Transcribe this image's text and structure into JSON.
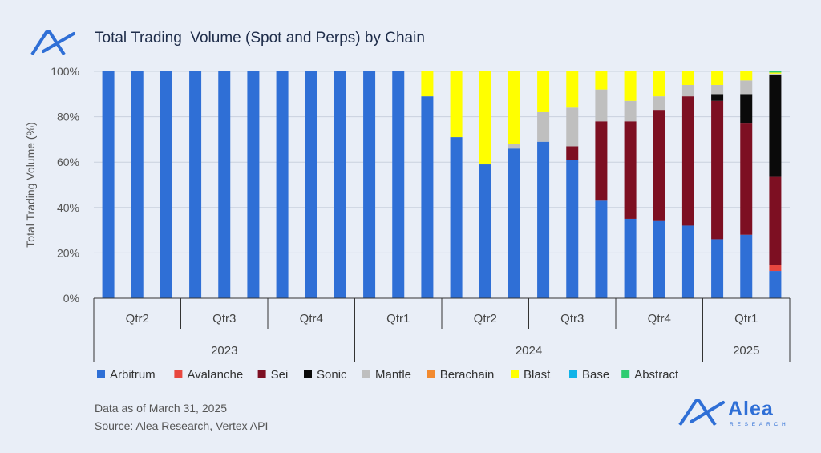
{
  "header": {
    "title": "Total Trading  Volume (Spot and Perps) by Chain",
    "logo_icon": "alea-logo-icon"
  },
  "footer": {
    "line1": "Data as of March 31, 2025",
    "line2": "Source: Alea Research, Vertex API"
  },
  "brand": {
    "name": "Alea",
    "sub": "RESEARCH"
  },
  "chart_data": {
    "type": "bar",
    "stacked": true,
    "ylabel": "Total Trading Volume (%)",
    "ylim": [
      0,
      100
    ],
    "yticks": [
      "0%",
      "20%",
      "40%",
      "60%",
      "80%",
      "100%"
    ],
    "grid": true,
    "legend_position": "bottom",
    "quarters": [
      {
        "label": "Qtr2",
        "bars": 3
      },
      {
        "label": "Qtr3",
        "bars": 3
      },
      {
        "label": "Qtr4",
        "bars": 3
      },
      {
        "label": "Qtr1",
        "bars": 3
      },
      {
        "label": "Qtr2",
        "bars": 3
      },
      {
        "label": "Qtr3",
        "bars": 3
      },
      {
        "label": "Qtr4",
        "bars": 3
      },
      {
        "label": "Qtr1",
        "bars": 3
      }
    ],
    "years": [
      {
        "label": "2023",
        "quarters": 3
      },
      {
        "label": "2024",
        "quarters": 4
      },
      {
        "label": "2025",
        "quarters": 1
      }
    ],
    "series": [
      {
        "name": "Arbitrum",
        "color": "#2f6fd6",
        "values": [
          100,
          100,
          100,
          100,
          100,
          100,
          100,
          100,
          100,
          100,
          100,
          89,
          71,
          59,
          66,
          69,
          61,
          43,
          35,
          34,
          32,
          26,
          28,
          12
        ]
      },
      {
        "name": "Avalanche",
        "color": "#e8473f",
        "values": [
          0,
          0,
          0,
          0,
          0,
          0,
          0,
          0,
          0,
          0,
          0,
          0,
          0,
          0,
          0,
          0,
          0,
          0,
          0,
          0,
          0,
          0,
          0,
          2.5
        ]
      },
      {
        "name": "Sei",
        "color": "#7d0f22",
        "values": [
          0,
          0,
          0,
          0,
          0,
          0,
          0,
          0,
          0,
          0,
          0,
          0,
          0,
          0,
          0,
          0,
          6,
          35,
          43,
          49,
          57,
          61,
          49,
          39
        ]
      },
      {
        "name": "Sonic",
        "color": "#0a0a0a",
        "values": [
          0,
          0,
          0,
          0,
          0,
          0,
          0,
          0,
          0,
          0,
          0,
          0,
          0,
          0,
          0,
          0,
          0,
          0,
          0,
          0,
          0,
          3,
          13,
          45
        ]
      },
      {
        "name": "Mantle",
        "color": "#bfbfbf",
        "values": [
          0,
          0,
          0,
          0,
          0,
          0,
          0,
          0,
          0,
          0,
          0,
          0,
          0,
          0,
          2,
          13,
          17,
          14,
          9,
          6,
          5,
          4,
          6,
          0.5
        ]
      },
      {
        "name": "Berachain",
        "color": "#f28a30",
        "values": [
          0,
          0,
          0,
          0,
          0,
          0,
          0,
          0,
          0,
          0,
          0,
          0,
          0,
          0,
          0,
          0,
          0,
          0,
          0,
          0,
          0,
          0,
          0,
          0
        ]
      },
      {
        "name": "Blast",
        "color": "#ffff00",
        "values": [
          0,
          0,
          0,
          0,
          0,
          0,
          0,
          0,
          0,
          0,
          0,
          11,
          29,
          41,
          32,
          18,
          16,
          8,
          13,
          11,
          6,
          6,
          4,
          0.5
        ]
      },
      {
        "name": "Base",
        "color": "#10b3e8",
        "values": [
          0,
          0,
          0,
          0,
          0,
          0,
          0,
          0,
          0,
          0,
          0,
          0,
          0,
          0,
          0,
          0,
          0,
          0,
          0,
          0,
          0,
          0,
          0,
          0
        ]
      },
      {
        "name": "Abstract",
        "color": "#2ecc71",
        "values": [
          0,
          0,
          0,
          0,
          0,
          0,
          0,
          0,
          0,
          0,
          0,
          0,
          0,
          0,
          0,
          0,
          0,
          0,
          0,
          0,
          0,
          0,
          0,
          0.5
        ]
      }
    ]
  }
}
